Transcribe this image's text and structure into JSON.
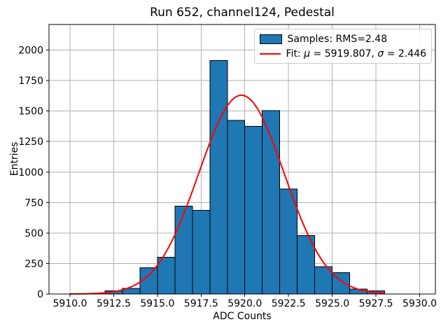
{
  "chart_data": {
    "type": "bar",
    "subtype": "histogram-with-gaussian-fit",
    "title": "Run 652, channel124, Pedestal",
    "xlabel": "ADC Counts",
    "ylabel": "Entries",
    "xlim": [
      5908.8,
      5930.9
    ],
    "ylim": [
      0,
      2210
    ],
    "grid": true,
    "legend_position": "upper right",
    "xtick_values": [
      5910.0,
      5912.5,
      5915.0,
      5917.5,
      5920.0,
      5922.5,
      5925.0,
      5927.5,
      5930.0
    ],
    "xtick_labels": [
      "5910.0",
      "5912.5",
      "5915.0",
      "5917.5",
      "5920.0",
      "5922.5",
      "5925.0",
      "5927.5",
      "5930.0"
    ],
    "ytick_values": [
      0,
      250,
      500,
      750,
      1000,
      1250,
      1500,
      1750,
      2000
    ],
    "ytick_labels": [
      "0",
      "250",
      "500",
      "750",
      "1000",
      "1250",
      "1500",
      "1750",
      "2000"
    ],
    "colors": {
      "bars": "#1f77b4",
      "bar_edge": "#000000",
      "fit_line": "#ff0000",
      "grid": "#b0b0b0",
      "spine": "#000000",
      "text": "#000000",
      "legend_border": "#cccccc",
      "background": "#ffffff"
    },
    "histogram": {
      "bin_edges": [
        5912,
        5913,
        5914,
        5915,
        5916,
        5917,
        5918,
        5919,
        5920,
        5921,
        5922,
        5923,
        5924,
        5925,
        5926,
        5927,
        5928
      ],
      "counts": [
        25,
        45,
        215,
        300,
        720,
        685,
        1915,
        1425,
        1375,
        1505,
        860,
        480,
        225,
        175,
        40,
        25
      ]
    },
    "fit": {
      "mu": 5919.807,
      "sigma": 2.446,
      "peak": 1630,
      "x_min": 5910,
      "x_max": 5928
    },
    "legend": {
      "samples_label": "Samples: RMS=2.48",
      "fit_label_prefix": "Fit: ",
      "fit_mu_symbol": "μ",
      "fit_mu_value": " = 5919.807, ",
      "fit_sigma_symbol": "σ",
      "fit_sigma_value": " = 2.446"
    }
  }
}
